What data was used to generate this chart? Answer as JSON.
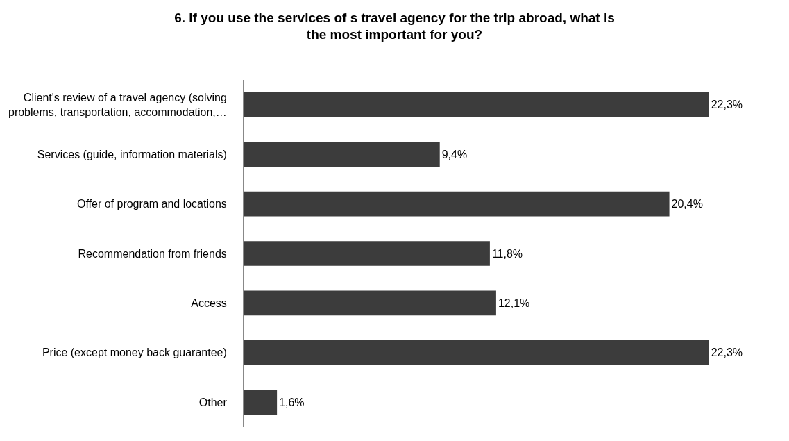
{
  "chart_data": {
    "type": "bar",
    "orientation": "horizontal",
    "title": "6. If you use the services of s travel agency for the trip abroad, what is\nthe most important for you?",
    "categories": [
      "Client's review of a travel agency (solving\nproblems, transportation, accommodation,…",
      "Services (guide, information materials)",
      "Offer of program and locations",
      "Recommendation from friends",
      "Access",
      "Price (except money back guarantee)",
      "Other"
    ],
    "values": [
      22.3,
      9.4,
      20.4,
      11.8,
      12.1,
      22.3,
      1.6
    ],
    "value_labels": [
      "22,3%",
      "9,4%",
      "20,4%",
      "11,8%",
      "12,1%",
      "22,3%",
      "1,6%"
    ],
    "color": "#3c3c3c"
  }
}
